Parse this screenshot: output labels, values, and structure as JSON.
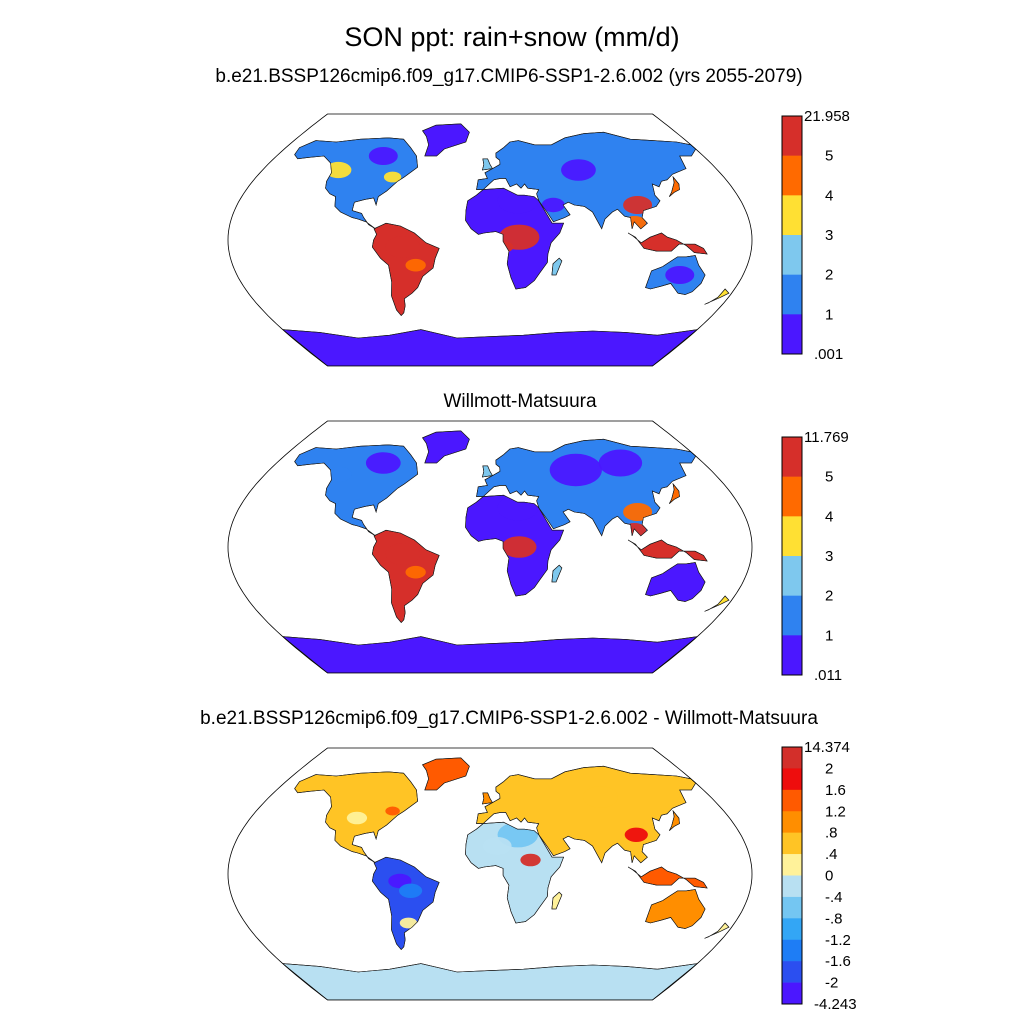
{
  "title": "SON ppt: rain+snow (mm/d)",
  "panels": [
    {
      "id": "p1",
      "title": "b.e21.BSSP126cmip6.f09_g17.CMIP6-SSP1-2.6.002 (yrs 2055-2079)",
      "colorbar": {
        "labels": [
          "21.958",
          "5",
          "4",
          "3",
          "2",
          "1",
          ".001"
        ],
        "colors": [
          "#d62f2a",
          "#ff6a00",
          "#ffe033",
          "#7ec8ee",
          "#2f82f0",
          "#4b17ff"
        ]
      }
    },
    {
      "id": "p2",
      "title": "Willmott-Matsuura",
      "colorbar": {
        "labels": [
          "11.769",
          "5",
          "4",
          "3",
          "2",
          "1",
          ".011"
        ],
        "colors": [
          "#d62f2a",
          "#ff6a00",
          "#ffe033",
          "#7ec8ee",
          "#2f82f0",
          "#4b17ff"
        ]
      }
    },
    {
      "id": "p3",
      "title": "b.e21.BSSP126cmip6.f09_g17.CMIP6-SSP1-2.6.002 - Willmott-Matsuura",
      "colorbar": {
        "labels": [
          "14.374",
          "2",
          "1.6",
          "1.2",
          ".8",
          ".4",
          "0",
          "-.4",
          "-.8",
          "-1.2",
          "-1.6",
          "-2",
          "-4.243"
        ],
        "colors": [
          "#d32f2a",
          "#ee0d0d",
          "#ff5a00",
          "#ff8e00",
          "#ffc425",
          "#fff29a",
          "#b8e0f2",
          "#74c6f2",
          "#33a6f5",
          "#1e7df5",
          "#2b4ff0",
          "#4b17ff"
        ]
      }
    }
  ]
}
